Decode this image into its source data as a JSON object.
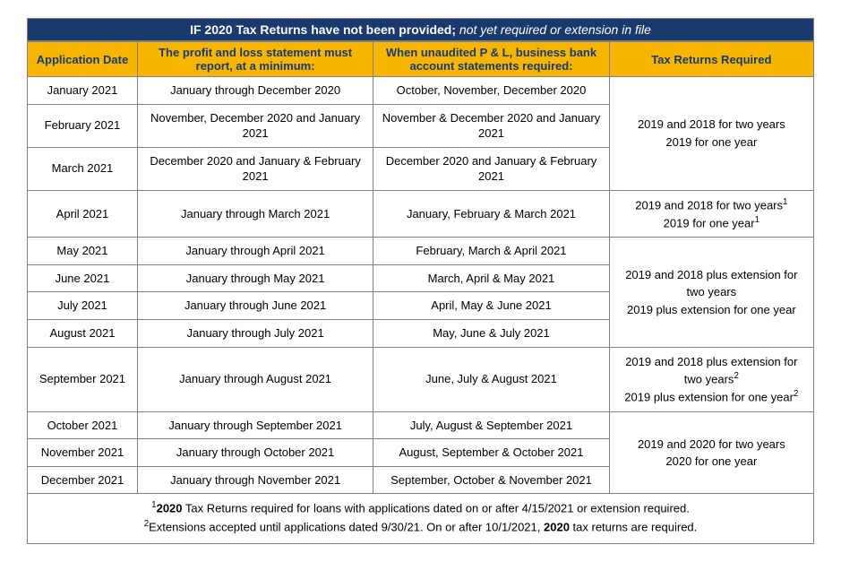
{
  "colors": {
    "header_bg": "#1a3a6e",
    "header_text": "#ffffff",
    "subheader_bg": "#f7b500",
    "subheader_text": "#1a3a6e",
    "border": "#808080",
    "body_text": "#000000",
    "background": "#ffffff"
  },
  "typography": {
    "font_family": "Arial",
    "title_fontsize_pt": 11,
    "header_fontsize_pt": 10,
    "cell_fontsize_pt": 10
  },
  "table": {
    "title_plain": "IF 2020 Tax Returns have not been provided;",
    "title_italic": " not yet required or extension in file",
    "columns": [
      {
        "key": "date",
        "label": "Application Date",
        "width_pct": 14
      },
      {
        "key": "pl",
        "label": "The profit and loss statement must report, at a minimum:",
        "width_pct": 30
      },
      {
        "key": "bank",
        "label": "When unaudited P & L, business bank account statements required:",
        "width_pct": 30
      },
      {
        "key": "tax",
        "label": "Tax Returns Required",
        "width_pct": 26
      }
    ],
    "groups": [
      {
        "tax_cell_html": "2019 and 2018 for two years<br>2019 for one year",
        "rows": [
          {
            "date": "January 2021",
            "pl": "January through December 2020",
            "bank": "October, November, December 2020"
          },
          {
            "date": "February 2021",
            "pl": "November, December 2020 and January 2021",
            "bank": "November & December 2020 and January 2021"
          },
          {
            "date": "March 2021",
            "pl": "December 2020 and January & February 2021",
            "bank": "December 2020 and January & February 2021"
          }
        ]
      },
      {
        "tax_cell_html": "2019 and 2018 for two years<sup>1</sup><br>2019 for one year<sup>1</sup>",
        "rows": [
          {
            "date": "April 2021",
            "pl": "January through March 2021",
            "bank": "January, February & March 2021"
          }
        ]
      },
      {
        "tax_cell_html": "2019 and 2018 plus extension for two years<br>2019 plus extension for one year",
        "rows": [
          {
            "date": "May 2021",
            "pl": "January through April 2021",
            "bank": "February, March & April  2021"
          },
          {
            "date": "June 2021",
            "pl": "January through May 2021",
            "bank": "March, April & May  2021"
          },
          {
            "date": "July 2021",
            "pl": "January through June 2021",
            "bank": "April, May & June  2021"
          },
          {
            "date": "August 2021",
            "pl": "January through July 2021",
            "bank": "May, June & July  2021"
          }
        ]
      },
      {
        "tax_cell_html": "2019 and 2018 plus extension for two years<sup>2</sup><br>2019 plus extension for one year<sup>2</sup>",
        "rows": [
          {
            "date": "September 2021",
            "pl": "January through August 2021",
            "bank": "June, July & August  2021"
          }
        ]
      },
      {
        "tax_cell_html": "2019 and 2020 for two years<br>2020 for one year",
        "rows": [
          {
            "date": "October 2021",
            "pl": "January through September 2021",
            "bank": "July, August & September 2021"
          },
          {
            "date": "November 2021",
            "pl": "January through October 2021",
            "bank": "August, September & October  2021"
          },
          {
            "date": "December 2021",
            "pl": "January through November  2021",
            "bank": "September, October & November 2021"
          }
        ]
      }
    ],
    "footnotes": [
      "<sup>1</sup><b>2020</b> Tax Returns required for loans with applications dated on or after 4/15/2021 or extension required.",
      "<sup>2</sup>Extensions accepted until applications dated 9/30/21. On or after 10/1/2021, <b>2020</b> tax returns are required."
    ]
  }
}
